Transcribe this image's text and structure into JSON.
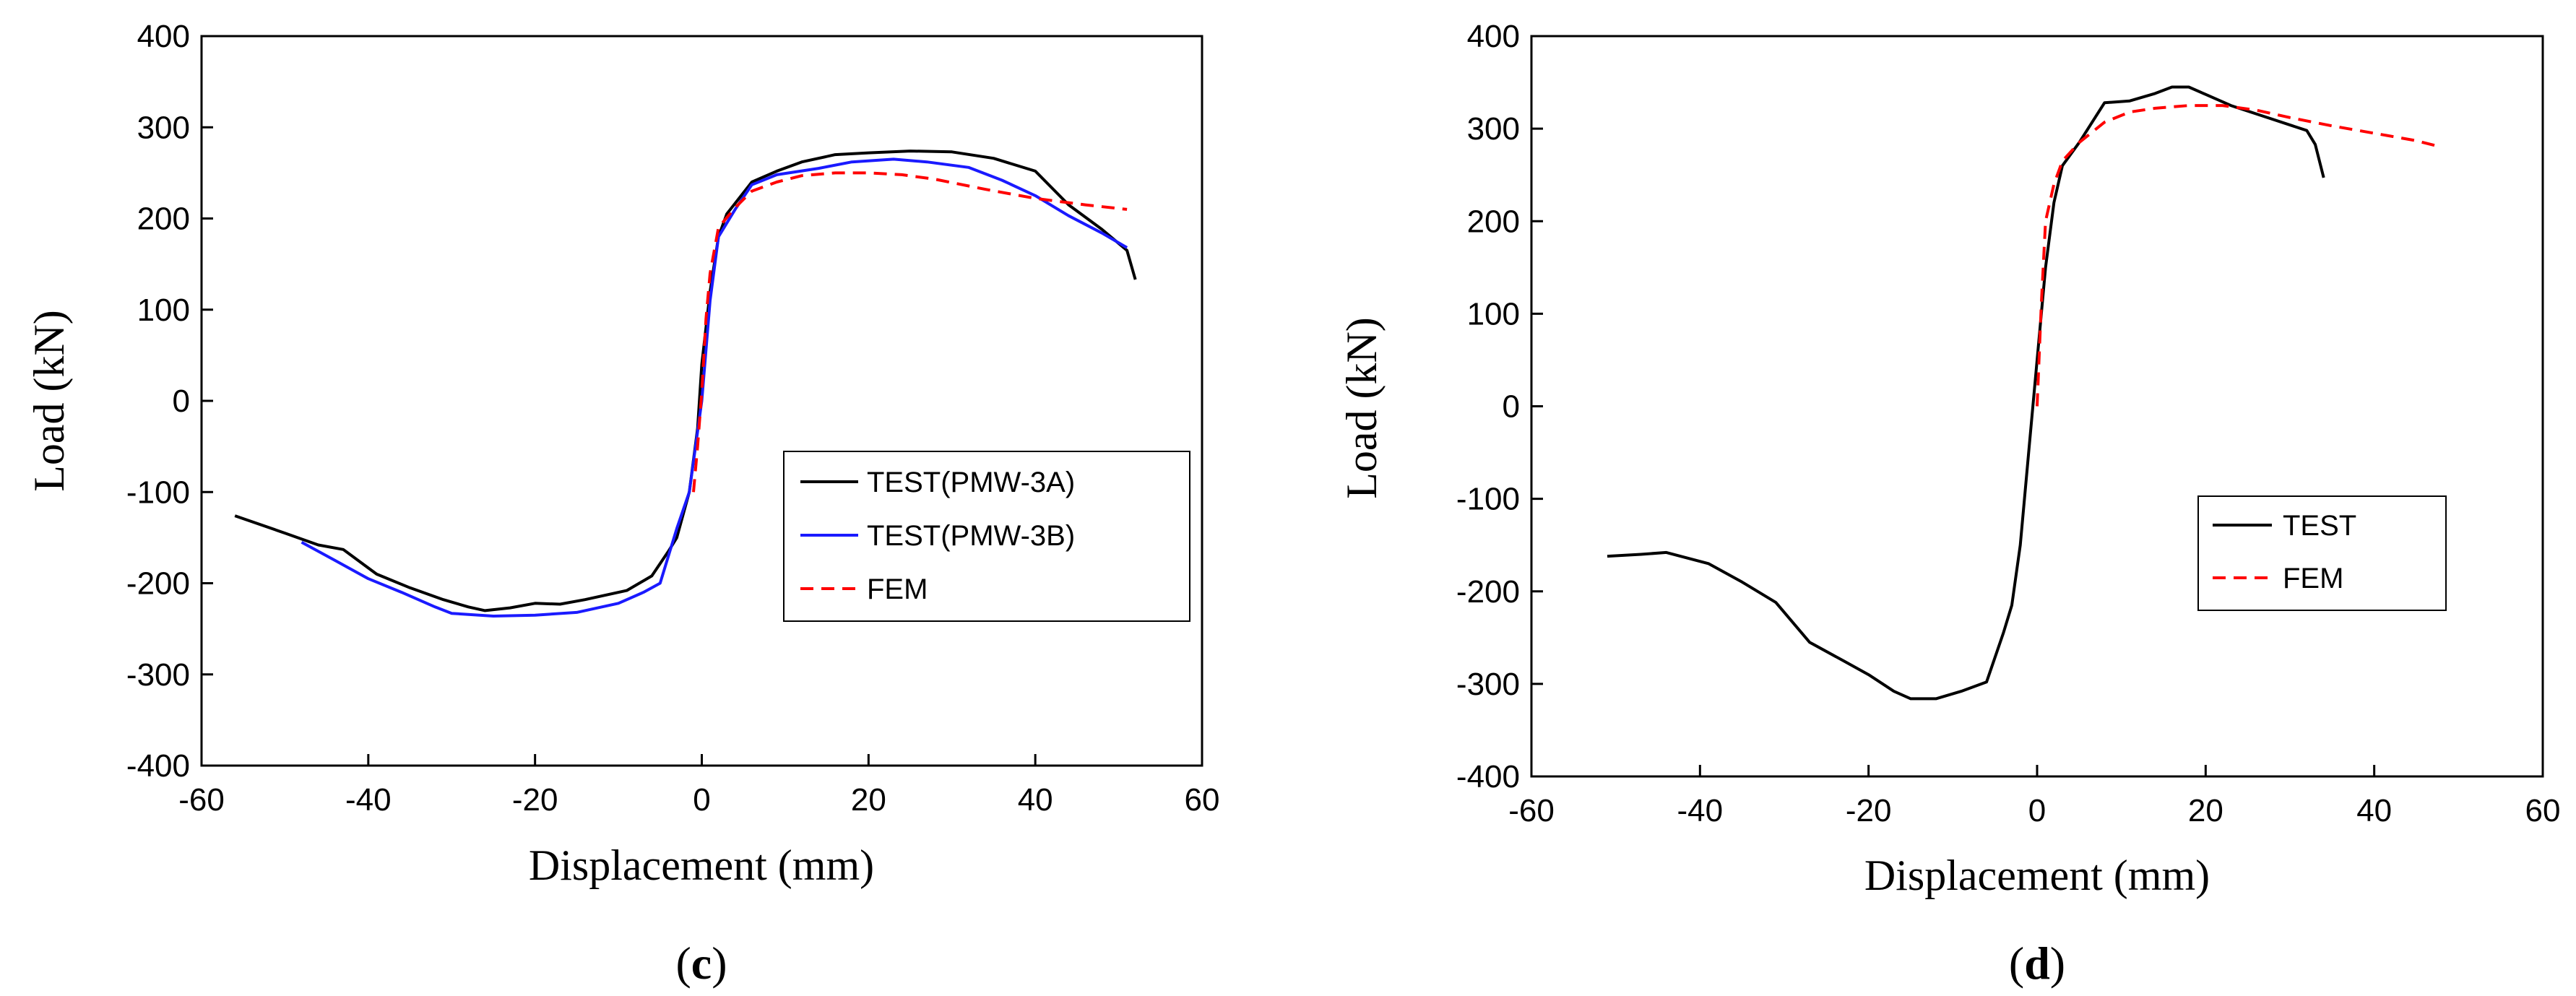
{
  "colors": {
    "test": "#000000",
    "test_b": "#1a1aff",
    "fem": "#ff0000"
  },
  "chart_data": [
    {
      "type": "line",
      "panel_label": "c",
      "xlabel": "Displacement (mm)",
      "ylabel": "Load (kN)",
      "xlim": [
        -60,
        60
      ],
      "ylim": [
        -400,
        400
      ],
      "xticks": [
        -60,
        -40,
        -20,
        0,
        20,
        40,
        60
      ],
      "yticks": [
        -400,
        -300,
        -200,
        -100,
        0,
        100,
        200,
        300,
        400
      ],
      "legend_position": "center-right",
      "series": [
        {
          "name": "TEST(PMW-3A)",
          "style": "solid",
          "color": "#000000",
          "points": [
            [
              -56,
              -126
            ],
            [
              -50,
              -145
            ],
            [
              -46,
              -158
            ],
            [
              -43,
              -163
            ],
            [
              -39,
              -190
            ],
            [
              -35,
              -205
            ],
            [
              -31,
              -218
            ],
            [
              -28,
              -226
            ],
            [
              -26,
              -230
            ],
            [
              -23,
              -227
            ],
            [
              -20,
              -222
            ],
            [
              -17,
              -223
            ],
            [
              -14,
              -218
            ],
            [
              -9,
              -208
            ],
            [
              -6,
              -192
            ],
            [
              -4,
              -165
            ],
            [
              -3,
              -150
            ],
            [
              -1.5,
              -100
            ],
            [
              -0.5,
              -30
            ],
            [
              0,
              40
            ],
            [
              1,
              120
            ],
            [
              2,
              180
            ],
            [
              3,
              205
            ],
            [
              6,
              240
            ],
            [
              9,
              252
            ],
            [
              12,
              262
            ],
            [
              16,
              270
            ],
            [
              20,
              272
            ],
            [
              25,
              274
            ],
            [
              30,
              273
            ],
            [
              35,
              266
            ],
            [
              40,
              252
            ],
            [
              44,
              215
            ],
            [
              48,
              188
            ],
            [
              51,
              165
            ],
            [
              52,
              133
            ]
          ]
        },
        {
          "name": "TEST(PMW-3B)",
          "style": "solid",
          "color": "#1a1aff",
          "points": [
            [
              -48,
              -155
            ],
            [
              -44,
              -175
            ],
            [
              -40,
              -195
            ],
            [
              -36,
              -210
            ],
            [
              -32,
              -226
            ],
            [
              -30,
              -233
            ],
            [
              -25,
              -236
            ],
            [
              -20,
              -235
            ],
            [
              -15,
              -232
            ],
            [
              -10,
              -222
            ],
            [
              -7,
              -210
            ],
            [
              -5,
              -200
            ],
            [
              -3,
              -140
            ],
            [
              -1.5,
              -100
            ],
            [
              0,
              0
            ],
            [
              1,
              110
            ],
            [
              2,
              180
            ],
            [
              4,
              210
            ],
            [
              6,
              237
            ],
            [
              9,
              248
            ],
            [
              14,
              255
            ],
            [
              18,
              262
            ],
            [
              23,
              265
            ],
            [
              27,
              262
            ],
            [
              32,
              256
            ],
            [
              36,
              242
            ],
            [
              40,
              225
            ],
            [
              44,
              203
            ],
            [
              48,
              184
            ],
            [
              51,
              168
            ]
          ]
        },
        {
          "name": "FEM",
          "style": "dashed",
          "color": "#ff0000",
          "points": [
            [
              -1,
              -100
            ],
            [
              -0.5,
              -50
            ],
            [
              0,
              10
            ],
            [
              0.5,
              90
            ],
            [
              1,
              140
            ],
            [
              2,
              190
            ],
            [
              4,
              212
            ],
            [
              6,
              230
            ],
            [
              9,
              240
            ],
            [
              12,
              247
            ],
            [
              16,
              250
            ],
            [
              20,
              250
            ],
            [
              24,
              248
            ],
            [
              28,
              243
            ],
            [
              34,
              232
            ],
            [
              40,
              222
            ],
            [
              46,
              215
            ],
            [
              51,
              210
            ]
          ]
        }
      ]
    },
    {
      "type": "line",
      "panel_label": "d",
      "xlabel": "Displacement (mm)",
      "ylabel": "Load (kN)",
      "xlim": [
        -60,
        60
      ],
      "ylim": [
        -400,
        400
      ],
      "xticks": [
        -60,
        -40,
        -20,
        0,
        20,
        40,
        60
      ],
      "yticks": [
        -400,
        -300,
        -200,
        -100,
        0,
        100,
        200,
        300,
        400
      ],
      "legend_position": "center-right",
      "series": [
        {
          "name": "TEST",
          "style": "solid",
          "color": "#000000",
          "points": [
            [
              -51,
              -162
            ],
            [
              -47,
              -160
            ],
            [
              -44,
              -158
            ],
            [
              -39,
              -170
            ],
            [
              -35,
              -190
            ],
            [
              -31,
              -212
            ],
            [
              -27,
              -255
            ],
            [
              -23,
              -275
            ],
            [
              -20,
              -290
            ],
            [
              -17,
              -308
            ],
            [
              -15,
              -316
            ],
            [
              -12,
              -316
            ],
            [
              -9,
              -308
            ],
            [
              -6,
              -298
            ],
            [
              -4,
              -245
            ],
            [
              -3,
              -215
            ],
            [
              -2,
              -150
            ],
            [
              -1,
              -50
            ],
            [
              0,
              50
            ],
            [
              1,
              150
            ],
            [
              2,
              220
            ],
            [
              3,
              260
            ],
            [
              5,
              285
            ],
            [
              8,
              328
            ],
            [
              11,
              330
            ],
            [
              14,
              338
            ],
            [
              16,
              345
            ],
            [
              18,
              345
            ],
            [
              20,
              337
            ],
            [
              23,
              325
            ],
            [
              27,
              313
            ],
            [
              32,
              298
            ],
            [
              33,
              283
            ],
            [
              34,
              247
            ]
          ]
        },
        {
          "name": "FEM",
          "style": "dashed",
          "color": "#ff0000",
          "points": [
            [
              0,
              0
            ],
            [
              0.5,
              110
            ],
            [
              1,
              200
            ],
            [
              2,
              240
            ],
            [
              3,
              265
            ],
            [
              5,
              285
            ],
            [
              8,
              307
            ],
            [
              11,
              318
            ],
            [
              14,
              322
            ],
            [
              18,
              325
            ],
            [
              22,
              325
            ],
            [
              26,
              320
            ],
            [
              30,
              312
            ],
            [
              35,
              303
            ],
            [
              40,
              295
            ],
            [
              45,
              287
            ],
            [
              48,
              280
            ]
          ]
        }
      ]
    }
  ]
}
